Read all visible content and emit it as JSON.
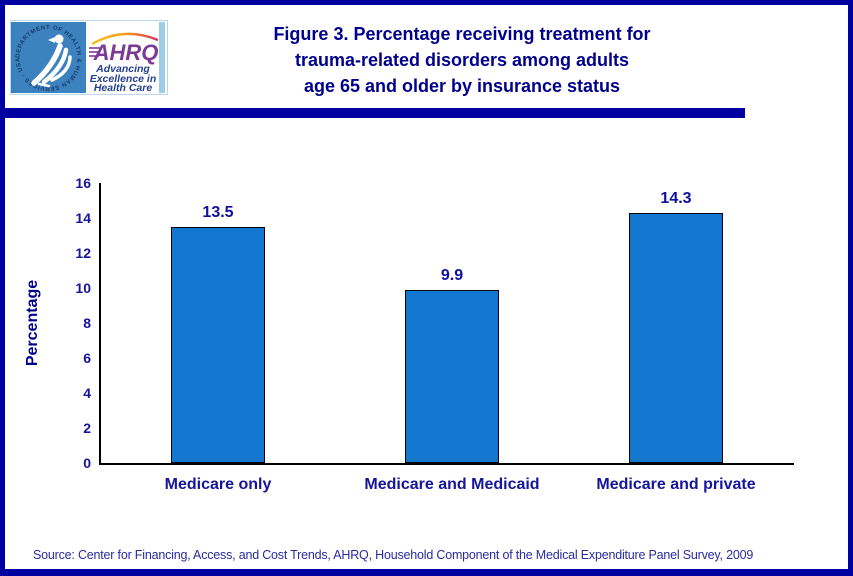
{
  "header": {
    "logo": {
      "hhs_ring_text": "DEPARTMENT OF HEALTH & HUMAN SERVICES · USA",
      "ahrq_acronym": "AHRQ",
      "ahrq_tagline_lines": [
        "Advancing",
        "Excellence in",
        "Health Care"
      ]
    },
    "title_lines": [
      "Figure 3. Percentage receiving treatment for",
      "trauma-related disorders among adults",
      "age 65 and older by insurance status"
    ]
  },
  "chart_data": {
    "type": "bar",
    "title": "Figure 3. Percentage receiving treatment for trauma-related disorders among adults age 65 and older by insurance status",
    "categories": [
      "Medicare only",
      "Medicare and Medicaid",
      "Medicare and private"
    ],
    "values": [
      13.5,
      9.9,
      14.3
    ],
    "value_labels": [
      "13.5",
      "9.9",
      "14.3"
    ],
    "xlabel": "",
    "ylabel": "Percentage",
    "ylim": [
      0,
      16
    ],
    "yticks": [
      0,
      2,
      4,
      6,
      8,
      10,
      12,
      14,
      16
    ],
    "grid": false,
    "legend_position": "none",
    "bar_color": "#1377D2",
    "bar_border_color": "#000000"
  },
  "footer": {
    "source": "Source: Center for Financing, Access, and Cost Trends, AHRQ, Household Component of the Medical Expenditure Panel Survey, 2009"
  },
  "colors": {
    "page_border_navy": "#0000A0",
    "title_navy": "#00008B",
    "axis_text_navy": "#15159B",
    "axis_line_black": "#000000",
    "hhs_logo_blue": "#3C82BE",
    "ahrq_purple": "#7B3A96",
    "ahrq_arc_orange": "#F7941D",
    "ahrq_arc_red": "#D6336C",
    "ahrq_tagline_navy": "#26408F"
  }
}
